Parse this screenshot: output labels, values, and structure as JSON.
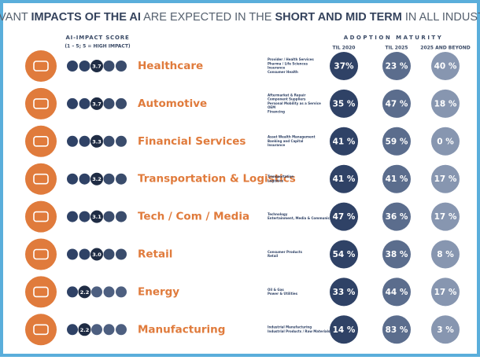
{
  "title_parts": [
    "RELEVANT ",
    "IMPACTS OF THE AI",
    " ARE EXPECTED IN THE ",
    "SHORT AND MID TERM",
    " IN ALL INDUSTRIES"
  ],
  "score_header": "AI-IMPACT SCORE",
  "score_note": "(1 – 5;   5 = HIGH IMPACT)",
  "maturity_header": "ADOPTION MATURITY",
  "columns": [
    "TIL 2020",
    "TIL 2025",
    "2025 AND BEYOND"
  ],
  "column_colors": [
    "#2f4266",
    "#5b6d8d",
    "#8796b0"
  ],
  "rows": [
    {
      "name": "Healthcare",
      "score": 3.7,
      "segments": [
        "Provider / Health Services",
        "Pharma / Life Sciences",
        "Insurance",
        "Consumer Health"
      ],
      "values": [
        37,
        23,
        40
      ],
      "value_labels": [
        "37%",
        "23 %",
        "40 %"
      ]
    },
    {
      "name": "Automotive",
      "score": 3.7,
      "segments": [
        "Aftermarket & Repair",
        "Component Suppliers",
        "Personal Mobility as a Service",
        "OEM",
        "Financing"
      ],
      "values": [
        35,
        47,
        18
      ],
      "value_labels": [
        "35 %",
        "47 %",
        "18 %"
      ]
    },
    {
      "name": "Financial Services",
      "score": 3.3,
      "segments": [
        "Asset Wealth Management",
        "Banking and Capital",
        "Insurance"
      ],
      "values": [
        41,
        59,
        0
      ],
      "value_labels": [
        "41 %",
        "59 %",
        "0 %"
      ]
    },
    {
      "name": "Transportation & Logistics",
      "score": 3.2,
      "segments": [
        "Transportation",
        "Logistics"
      ],
      "values": [
        41,
        41,
        17
      ],
      "value_labels": [
        "41 %",
        "41 %",
        "17 %"
      ]
    },
    {
      "name": "Tech / Com / Media",
      "score": 3.1,
      "segments": [
        "Technology",
        "Entertainment, Media & Communications"
      ],
      "values": [
        47,
        36,
        17
      ],
      "value_labels": [
        "47 %",
        "36 %",
        "17 %"
      ]
    },
    {
      "name": "Retail",
      "score": 3,
      "score_label": "3.0",
      "segments": [
        "Consumer Products",
        "Retail"
      ],
      "values": [
        54,
        38,
        8
      ],
      "value_labels": [
        "54 %",
        "38 %",
        "8 %"
      ]
    },
    {
      "name": "Energy",
      "score": 2.2,
      "segments": [
        "Oil & Gas",
        "Power & Utilities"
      ],
      "values": [
        33,
        44,
        17
      ],
      "value_labels": [
        "33 %",
        "44 %",
        "17 %"
      ]
    },
    {
      "name": "Manufacturing",
      "score": 2.2,
      "segments": [
        "Industrial Manufacturing",
        "Industrial Products / Raw Materials"
      ],
      "values": [
        14,
        83,
        3
      ],
      "value_labels": [
        "14 %",
        "83 %",
        "3 %"
      ]
    }
  ]
}
